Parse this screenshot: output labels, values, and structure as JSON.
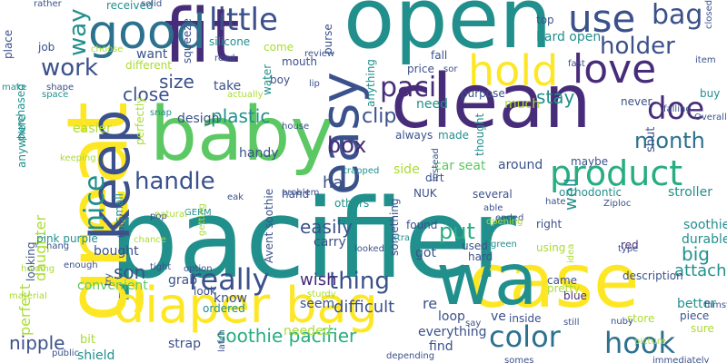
{
  "palette": {
    "purple": "#472c7a",
    "indigo": "#3b518b",
    "blue": "#2c718e",
    "teal": "#21908d",
    "green": "#27ad81",
    "lime": "#5cc863",
    "lightgreen": "#aadc32",
    "yellow": "#fde725"
  },
  "words": [
    {
      "text": "pacifier",
      "color": "teal"
    },
    {
      "text": "open",
      "color": "teal"
    },
    {
      "text": "fit",
      "color": "purple"
    },
    {
      "text": "clean",
      "color": "purple"
    },
    {
      "text": "great",
      "color": "yellow"
    },
    {
      "text": "baby",
      "color": "lime"
    },
    {
      "text": "case",
      "color": "yellow"
    },
    {
      "text": "wa",
      "color": "teal"
    },
    {
      "text": "diaper bag",
      "color": "yellow"
    },
    {
      "text": "good",
      "color": "blue"
    },
    {
      "text": "keep",
      "color": "indigo"
    },
    {
      "text": "easy",
      "color": "indigo"
    },
    {
      "text": "hold",
      "color": "yellow"
    },
    {
      "text": "love",
      "color": "purple"
    },
    {
      "text": "use",
      "color": "indigo"
    },
    {
      "text": "bag",
      "color": "indigo"
    },
    {
      "text": "little",
      "color": "indigo"
    },
    {
      "text": "holder",
      "color": "indigo"
    },
    {
      "text": "product",
      "color": "green"
    },
    {
      "text": "paci",
      "color": "purple"
    },
    {
      "text": "doe",
      "color": "purple"
    },
    {
      "text": "month",
      "color": "blue"
    },
    {
      "text": "nice",
      "color": "teal"
    },
    {
      "text": "handle",
      "color": "indigo"
    },
    {
      "text": "really",
      "color": "indigo"
    },
    {
      "text": "color",
      "color": "blue"
    },
    {
      "text": "hook",
      "color": "blue"
    },
    {
      "text": "work",
      "color": "indigo"
    },
    {
      "text": "way",
      "color": "teal"
    },
    {
      "text": "size",
      "color": "indigo"
    },
    {
      "text": "close",
      "color": "indigo"
    },
    {
      "text": "plastic",
      "color": "teal"
    },
    {
      "text": "clip",
      "color": "indigo"
    },
    {
      "text": "box",
      "color": "purple"
    },
    {
      "text": "stay",
      "color": "teal"
    },
    {
      "text": "thing",
      "color": "indigo"
    },
    {
      "text": "put",
      "color": "green"
    },
    {
      "text": "easily",
      "color": "indigo"
    },
    {
      "text": "wish",
      "color": "purple"
    },
    {
      "text": "son",
      "color": "indigo"
    },
    {
      "text": "nipple",
      "color": "indigo"
    },
    {
      "text": "soothie pacifier",
      "color": "green"
    },
    {
      "text": "strap",
      "color": "indigo"
    },
    {
      "text": "bit",
      "color": "lightgreen"
    },
    {
      "text": "shield",
      "color": "teal"
    },
    {
      "text": "perfect",
      "color": "lightgreen"
    },
    {
      "text": "daughter",
      "color": "lightgreen"
    },
    {
      "text": "bought",
      "color": "indigo"
    },
    {
      "text": "ha",
      "color": "indigo"
    },
    {
      "text": "handy",
      "color": "indigo"
    },
    {
      "text": "design",
      "color": "indigo"
    },
    {
      "text": "easier",
      "color": "lightgreen"
    },
    {
      "text": "difficult",
      "color": "indigo"
    },
    {
      "text": "seem",
      "color": "indigo"
    },
    {
      "text": "know",
      "color": "indigo"
    },
    {
      "text": "convenient",
      "color": "lime"
    },
    {
      "text": "grab",
      "color": "indigo"
    },
    {
      "text": "carry",
      "color": "indigo"
    },
    {
      "text": "found",
      "color": "indigo"
    },
    {
      "text": "got",
      "color": "indigo"
    },
    {
      "text": "re",
      "color": "indigo"
    },
    {
      "text": "ve",
      "color": "indigo"
    },
    {
      "text": "loop",
      "color": "indigo"
    },
    {
      "text": "find",
      "color": "indigo"
    },
    {
      "text": "everything",
      "color": "indigo"
    },
    {
      "text": "inside",
      "color": "indigo"
    },
    {
      "text": "needed",
      "color": "lightgreen"
    },
    {
      "text": "hard",
      "color": "indigo"
    },
    {
      "text": "used",
      "color": "indigo"
    },
    {
      "text": "car seat",
      "color": "lime"
    },
    {
      "text": "around",
      "color": "indigo"
    },
    {
      "text": "side",
      "color": "lightgreen"
    },
    {
      "text": "dirt",
      "color": "indigo"
    },
    {
      "text": "several",
      "color": "indigo"
    },
    {
      "text": "NUK",
      "color": "indigo"
    },
    {
      "text": "orthodontic",
      "color": "teal"
    },
    {
      "text": "well",
      "color": "teal"
    },
    {
      "text": "maybe",
      "color": "indigo"
    },
    {
      "text": "shut",
      "color": "indigo"
    },
    {
      "text": "stroller",
      "color": "teal"
    },
    {
      "text": "soothie",
      "color": "teal"
    },
    {
      "text": "durable",
      "color": "teal"
    },
    {
      "text": "big",
      "color": "teal"
    },
    {
      "text": "attach",
      "color": "teal"
    },
    {
      "text": "right",
      "color": "indigo"
    },
    {
      "text": "using",
      "color": "lightgreen"
    },
    {
      "text": "red",
      "color": "purple"
    },
    {
      "text": "blue",
      "color": "purple"
    },
    {
      "text": "store",
      "color": "lightgreen"
    },
    {
      "text": "better",
      "color": "teal"
    },
    {
      "text": "piece",
      "color": "indigo"
    },
    {
      "text": "sure",
      "color": "lightgreen"
    },
    {
      "text": "hard open",
      "color": "teal"
    },
    {
      "text": "fall",
      "color": "indigo"
    },
    {
      "text": "need",
      "color": "teal"
    },
    {
      "text": "much",
      "color": "lightgreen"
    },
    {
      "text": "never",
      "color": "indigo"
    },
    {
      "text": "buy",
      "color": "teal"
    },
    {
      "text": "made",
      "color": "teal"
    },
    {
      "text": "always",
      "color": "indigo"
    },
    {
      "text": "take",
      "color": "indigo"
    },
    {
      "text": "want",
      "color": "indigo"
    },
    {
      "text": "come",
      "color": "lightgreen"
    },
    {
      "text": "mouth",
      "color": "indigo"
    },
    {
      "text": "boy",
      "color": "indigo"
    },
    {
      "text": "silicone",
      "color": "teal"
    },
    {
      "text": "received",
      "color": "teal"
    },
    {
      "text": "different",
      "color": "lightgreen"
    },
    {
      "text": "place",
      "color": "indigo"
    },
    {
      "text": "job",
      "color": "indigo"
    },
    {
      "text": "purchased",
      "color": "teal"
    },
    {
      "text": "anywhere",
      "color": "teal"
    },
    {
      "text": "perfectly",
      "color": "lightgreen"
    },
    {
      "text": "hand",
      "color": "indigo"
    },
    {
      "text": "others",
      "color": "teal"
    },
    {
      "text": "Avent soothie",
      "color": "indigo"
    },
    {
      "text": "something",
      "color": "indigo"
    },
    {
      "text": "pink purple",
      "color": "teal"
    },
    {
      "text": "looking",
      "color": "indigo"
    },
    {
      "text": "small",
      "color": "teal"
    },
    {
      "text": "ordered",
      "color": "teal"
    },
    {
      "text": "look",
      "color": "indigo"
    },
    {
      "text": "squeeze",
      "color": "indigo"
    },
    {
      "text": "water",
      "color": "teal"
    },
    {
      "text": "purse",
      "color": "indigo"
    },
    {
      "text": "anything",
      "color": "teal"
    },
    {
      "text": "thought",
      "color": "teal"
    },
    {
      "text": "top",
      "color": "indigo"
    },
    {
      "text": "price",
      "color": "indigo"
    },
    {
      "text": "purpose",
      "color": "indigo"
    },
    {
      "text": "came",
      "color": "indigo"
    },
    {
      "text": "pretty",
      "color": "lightgreen"
    },
    {
      "text": "description",
      "color": "indigo"
    },
    {
      "text": "falling",
      "color": "indigo"
    },
    {
      "text": "Overall",
      "color": "indigo"
    },
    {
      "text": "item",
      "color": "indigo"
    },
    {
      "text": "fast",
      "color": "indigo"
    },
    {
      "text": "rather",
      "color": "indigo"
    },
    {
      "text": "solid",
      "color": "indigo"
    },
    {
      "text": "choose",
      "color": "lightgreen"
    },
    {
      "text": "shape",
      "color": "indigo"
    },
    {
      "text": "space",
      "color": "teal"
    },
    {
      "text": "make",
      "color": "teal"
    },
    {
      "text": "snap",
      "color": "teal"
    },
    {
      "text": "house",
      "color": "indigo"
    },
    {
      "text": "trapped",
      "color": "teal"
    },
    {
      "text": "keeping",
      "color": "lightgreen"
    },
    {
      "text": "problem",
      "color": "indigo"
    },
    {
      "text": "pop",
      "color": "indigo"
    },
    {
      "text": "chance",
      "color": "lightgreen"
    },
    {
      "text": "getting",
      "color": "lightgreen"
    },
    {
      "text": "GERM",
      "color": "teal"
    },
    {
      "text": "eak",
      "color": "indigo"
    },
    {
      "text": "instead",
      "color": "indigo"
    },
    {
      "text": "able",
      "color": "indigo"
    },
    {
      "text": "ended",
      "color": "indigo"
    },
    {
      "text": "opening",
      "color": "lightgreen"
    },
    {
      "text": "green",
      "color": "teal"
    },
    {
      "text": "hate",
      "color": "indigo"
    },
    {
      "text": "idea",
      "color": "lightgreen"
    },
    {
      "text": "type",
      "color": "indigo"
    },
    {
      "text": "Ziploc",
      "color": "indigo"
    },
    {
      "text": "option",
      "color": "indigo"
    },
    {
      "text": "tight",
      "color": "indigo"
    },
    {
      "text": "enough",
      "color": "indigo"
    },
    {
      "text": "hang",
      "color": "indigo"
    },
    {
      "text": "holding",
      "color": "lightgreen"
    },
    {
      "text": "material",
      "color": "lightgreen"
    },
    {
      "text": "try",
      "color": "indigo"
    },
    {
      "text": "sturdy",
      "color": "lightgreen"
    },
    {
      "text": "say",
      "color": "indigo"
    },
    {
      "text": "still",
      "color": "indigo"
    },
    {
      "text": "nuby",
      "color": "indigo"
    },
    {
      "text": "flimsy",
      "color": "indigo"
    },
    {
      "text": "picture",
      "color": "lightgreen"
    },
    {
      "text": "somes",
      "color": "indigo"
    },
    {
      "text": "immediately",
      "color": "indigo"
    },
    {
      "text": "depending",
      "color": "indigo"
    },
    {
      "text": "public",
      "color": "indigo"
    },
    {
      "text": "latch",
      "color": "indigo"
    },
    {
      "text": "read",
      "color": "indigo"
    },
    {
      "text": "review",
      "color": "indigo"
    },
    {
      "text": "actually",
      "color": "lightgreen"
    },
    {
      "text": "lip",
      "color": "indigo"
    },
    {
      "text": "sor",
      "color": "indigo"
    },
    {
      "text": "closed",
      "color": "indigo"
    },
    {
      "text": "looked",
      "color": "indigo"
    },
    {
      "text": "extra",
      "color": "teal"
    },
    {
      "text": "natural",
      "color": "lightgreen"
    },
    {
      "text": "binky",
      "color": "indigo"
    },
    {
      "text": "old",
      "color": "indigo"
    }
  ]
}
